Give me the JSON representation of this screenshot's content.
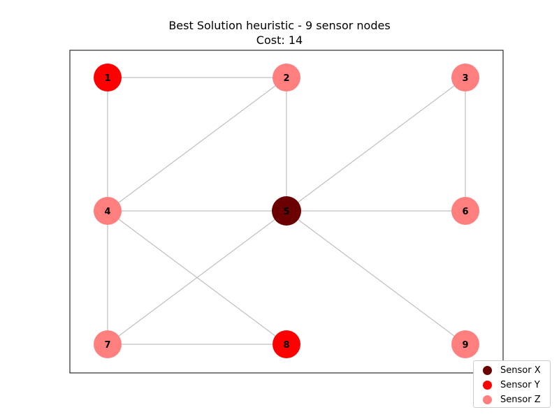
{
  "title": {
    "line1": "Best Solution heuristic - 9 sensor nodes",
    "line2": "Cost: 14"
  },
  "colors": {
    "sensor_x": "#6b0000",
    "sensor_y": "#ff0000",
    "sensor_z": "#ff7f7f",
    "edge": "#bfbfbf"
  },
  "nodes": [
    {
      "id": "1",
      "label": "1",
      "type": "sensor_y"
    },
    {
      "id": "2",
      "label": "2",
      "type": "sensor_z"
    },
    {
      "id": "3",
      "label": "3",
      "type": "sensor_z"
    },
    {
      "id": "4",
      "label": "4",
      "type": "sensor_z"
    },
    {
      "id": "5",
      "label": "5",
      "type": "sensor_x"
    },
    {
      "id": "6",
      "label": "6",
      "type": "sensor_z"
    },
    {
      "id": "7",
      "label": "7",
      "type": "sensor_z"
    },
    {
      "id": "8",
      "label": "8",
      "type": "sensor_y"
    },
    {
      "id": "9",
      "label": "9",
      "type": "sensor_z"
    }
  ],
  "edges": [
    [
      "1",
      "2"
    ],
    [
      "1",
      "4"
    ],
    [
      "2",
      "4"
    ],
    [
      "2",
      "5"
    ],
    [
      "3",
      "5"
    ],
    [
      "3",
      "6"
    ],
    [
      "4",
      "5"
    ],
    [
      "4",
      "7"
    ],
    [
      "4",
      "8"
    ],
    [
      "5",
      "6"
    ],
    [
      "5",
      "7"
    ],
    [
      "5",
      "9"
    ],
    [
      "7",
      "8"
    ]
  ],
  "legend": {
    "items": [
      {
        "label": "Sensor X",
        "type": "sensor_x"
      },
      {
        "label": "Sensor Y",
        "type": "sensor_y"
      },
      {
        "label": "Sensor Z",
        "type": "sensor_z"
      }
    ]
  }
}
